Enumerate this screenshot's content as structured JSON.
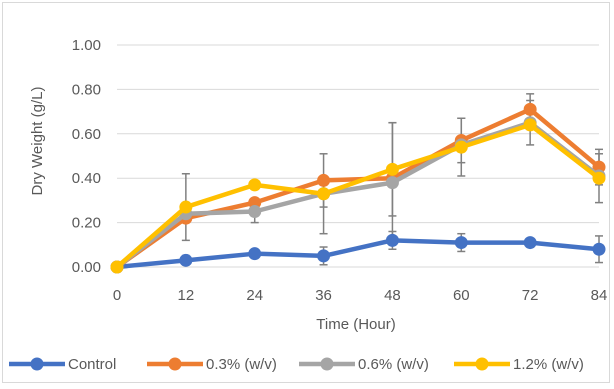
{
  "chart_data": {
    "type": "line",
    "title": "",
    "xlabel": "Time (Hour)",
    "ylabel": "Dry Weight (g/L)",
    "x": [
      0,
      12,
      24,
      36,
      48,
      60,
      72,
      84
    ],
    "xlim": [
      0,
      84
    ],
    "ylim": [
      0,
      1.0
    ],
    "y_ticks": [
      0,
      0.2,
      0.4,
      0.6,
      0.8,
      1.0
    ],
    "y_tick_labels": [
      "0.00",
      "0.20",
      "0.40",
      "0.60",
      "0.80",
      "1.00"
    ],
    "x_tick_labels": [
      "0",
      "12",
      "24",
      "36",
      "48",
      "60",
      "72",
      "84"
    ],
    "grid": "horizontal",
    "legend_position": "bottom",
    "series": [
      {
        "name": "Control",
        "color": "#4472C4",
        "values": [
          0.0,
          0.03,
          0.06,
          0.05,
          0.12,
          0.11,
          0.11,
          0.08
        ],
        "errors": [
          0.0,
          0.0,
          0.0,
          0.04,
          0.04,
          0.04,
          0.0,
          0.06
        ]
      },
      {
        "name": "0.3% (w/v)",
        "color": "#ED7D31",
        "values": [
          0.0,
          0.22,
          0.29,
          0.39,
          0.4,
          0.57,
          0.71,
          0.45
        ],
        "errors": [
          0.0,
          0.0,
          0.0,
          0.0,
          0.0,
          0.1,
          0.07,
          0.08
        ]
      },
      {
        "name": "0.6% (w/v)",
        "color": "#A5A5A5",
        "values": [
          0.0,
          0.24,
          0.25,
          0.33,
          0.38,
          0.55,
          0.65,
          0.41
        ],
        "errors": [
          0.0,
          0.0,
          0.05,
          0.06,
          0.27,
          0.0,
          0.1,
          0.0
        ]
      },
      {
        "name": "1.2% (w/v)",
        "color": "#FFC000",
        "values": [
          0.0,
          0.27,
          0.37,
          0.33,
          0.44,
          0.54,
          0.64,
          0.4
        ],
        "errors": [
          0.0,
          0.15,
          0.0,
          0.18,
          0.21,
          0.13,
          0.0,
          0.11
        ]
      }
    ]
  }
}
